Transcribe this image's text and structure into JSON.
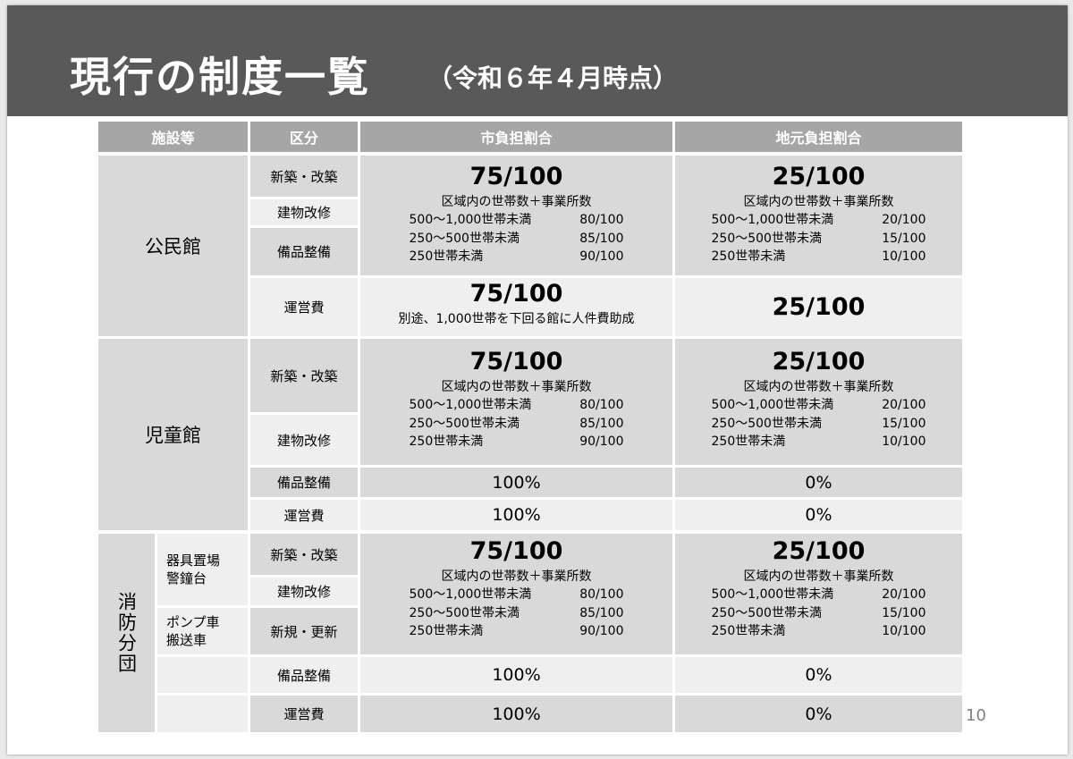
{
  "title": {
    "main": "現行の制度一覧",
    "sub": "（令和６年４月時点）"
  },
  "page_number": "10",
  "headers": {
    "facility": "施設等",
    "kubun": "区分",
    "city": "市負担割合",
    "local": "地元負担割合"
  },
  "kominkan": {
    "name": "公民館",
    "kubun": [
      "新築・改築",
      "建物改修",
      "備品整備",
      "運営費"
    ],
    "city": {
      "big": "75/100",
      "sub": "区域内の世帯数＋事業所数",
      "rows": [
        {
          "label": "500～1,000世帯未満",
          "value": "80/100"
        },
        {
          "label": "250～500世帯未満",
          "value": "85/100"
        },
        {
          "label": "250世帯未満",
          "value": "90/100"
        }
      ]
    },
    "local": {
      "big": "25/100",
      "sub": "区域内の世帯数＋事業所数",
      "rows": [
        {
          "label": "500～1,000世帯未満",
          "value": "20/100"
        },
        {
          "label": "250～500世帯未満",
          "value": "15/100"
        },
        {
          "label": "250世帯未満",
          "value": "10/100"
        }
      ]
    },
    "unei": {
      "city_big": "75/100",
      "city_note": "別途、1,000世帯を下回る館に人件費助成",
      "local": "25/100"
    }
  },
  "jidokan": {
    "name": "児童館",
    "kubun": [
      "新築・改築",
      "建物改修",
      "備品整備",
      "運営費"
    ],
    "city": {
      "big": "75/100",
      "sub": "区域内の世帯数＋事業所数",
      "rows": [
        {
          "label": "500～1,000世帯未満",
          "value": "80/100"
        },
        {
          "label": "250～500世帯未満",
          "value": "85/100"
        },
        {
          "label": "250世帯未満",
          "value": "90/100"
        }
      ]
    },
    "local": {
      "big": "25/100",
      "sub": "区域内の世帯数＋事業所数",
      "rows": [
        {
          "label": "500～1,000世帯未満",
          "value": "20/100"
        },
        {
          "label": "250～500世帯未満",
          "value": "15/100"
        },
        {
          "label": "250世帯未満",
          "value": "10/100"
        }
      ]
    },
    "bihin": {
      "city": "100%",
      "local": "0%"
    },
    "unei": {
      "city": "100%",
      "local": "0%"
    }
  },
  "shobo": {
    "name": "消防分団",
    "sub_a": "器具置場\n警鐘台",
    "sub_b": "ポンプ車\n搬送車",
    "kubun": [
      "新築・改築",
      "建物改修",
      "新規・更新",
      "備品整備",
      "運営費"
    ],
    "city": {
      "big": "75/100",
      "sub": "区域内の世帯数＋事業所数",
      "rows": [
        {
          "label": "500～1,000世帯未満",
          "value": "80/100"
        },
        {
          "label": "250～500世帯未満",
          "value": "85/100"
        },
        {
          "label": "250世帯未満",
          "value": "90/100"
        }
      ]
    },
    "local": {
      "big": "25/100",
      "sub": "区域内の世帯数＋事業所数",
      "rows": [
        {
          "label": "500～1,000世帯未満",
          "value": "20/100"
        },
        {
          "label": "250～500世帯未満",
          "value": "15/100"
        },
        {
          "label": "250世帯未満",
          "value": "10/100"
        }
      ]
    },
    "bihin": {
      "city": "100%",
      "local": "0%"
    },
    "unei": {
      "city": "100%",
      "local": "0%"
    }
  }
}
